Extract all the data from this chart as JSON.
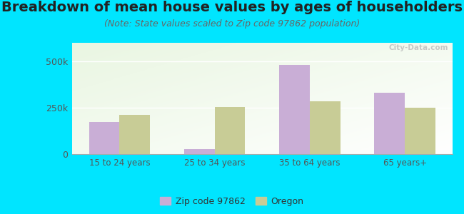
{
  "title": "Breakdown of mean house values by ages of householders",
  "subtitle": "(Note: State values scaled to Zip code 97862 population)",
  "categories": [
    "15 to 24 years",
    "25 to 34 years",
    "35 to 64 years",
    "65 years+"
  ],
  "zip_values": [
    175000,
    28000,
    480000,
    330000
  ],
  "oregon_values": [
    210000,
    255000,
    285000,
    250000
  ],
  "zip_color": "#c9aed6",
  "oregon_color": "#c8cc96",
  "background_outer": "#00e5ff",
  "ylim": [
    0,
    600000
  ],
  "yticks": [
    0,
    250000,
    500000
  ],
  "bar_width": 0.32,
  "legend_zip": "Zip code 97862",
  "legend_oregon": "Oregon",
  "title_fontsize": 14,
  "subtitle_fontsize": 9,
  "watermark": "City-Data.com"
}
